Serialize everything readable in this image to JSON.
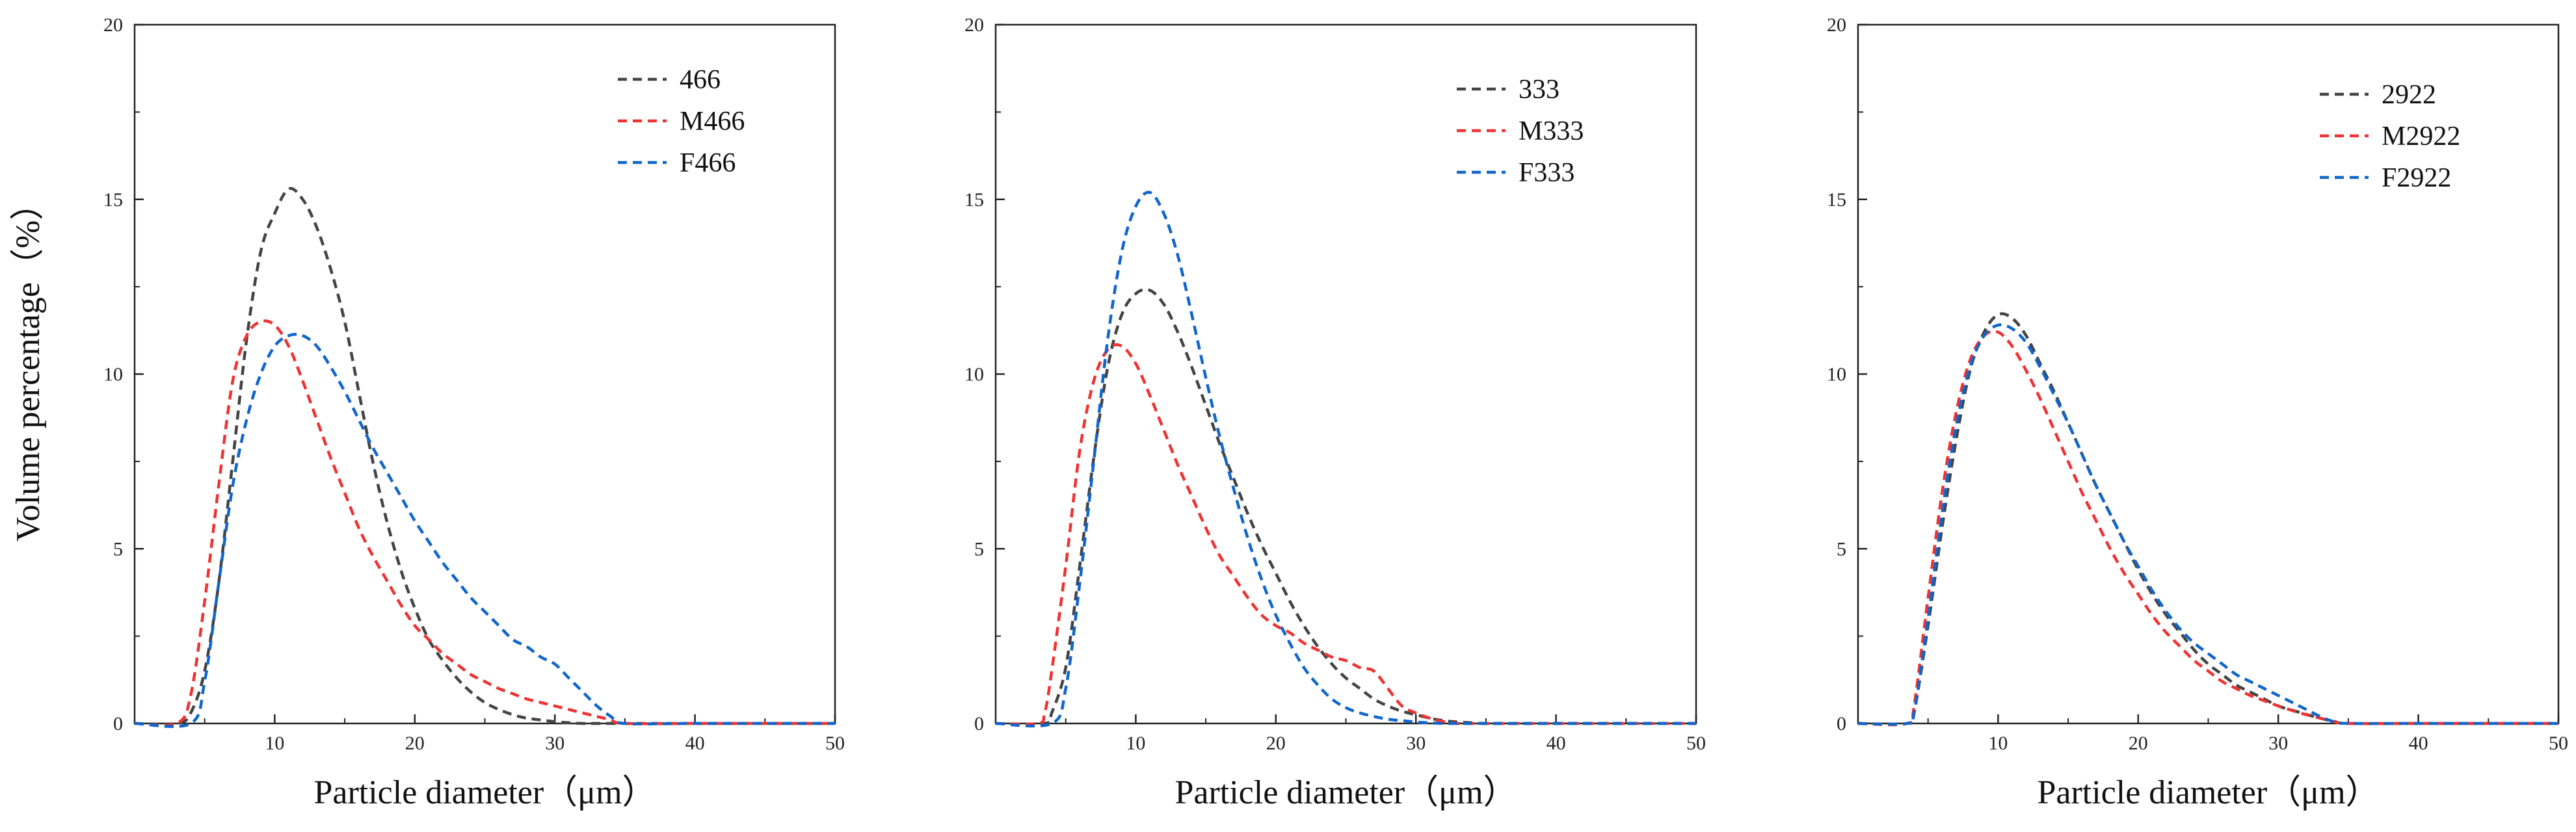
{
  "chart_data": [
    {
      "type": "line",
      "title": "",
      "xlabel": "Particle diameter（μm）",
      "ylabel": "Volume percentage（%）",
      "xlim": [
        0,
        50
      ],
      "ylim": [
        0,
        20
      ],
      "xticks": [
        10,
        20,
        30,
        40,
        50
      ],
      "yticks": [
        0,
        5,
        10,
        15,
        20
      ],
      "grid": false,
      "legend_position": "top-right",
      "series": [
        {
          "name": "466",
          "color": "#444444",
          "x": [
            0,
            3,
            4,
            5,
            6,
            7,
            8,
            9,
            10,
            11,
            12,
            13,
            14,
            15,
            16,
            17,
            18,
            19,
            20,
            21,
            22,
            23,
            24,
            25,
            26,
            27,
            28,
            29,
            30,
            31,
            32,
            33,
            35,
            40,
            45,
            50
          ],
          "y": [
            0,
            0,
            0.3,
            1.5,
            4,
            7.5,
            11,
            13.5,
            14.6,
            15.3,
            15,
            14.2,
            13,
            11.5,
            9.5,
            7.5,
            5.8,
            4.4,
            3.3,
            2.4,
            1.8,
            1.3,
            0.9,
            0.6,
            0.4,
            0.25,
            0.15,
            0.1,
            0.05,
            0.02,
            0,
            0,
            0,
            0,
            0,
            0
          ]
        },
        {
          "name": "M466",
          "color": "#ee3333",
          "x": [
            0,
            3,
            4,
            5,
            6,
            7,
            8,
            9,
            10,
            11,
            12,
            13,
            14,
            15,
            16,
            17,
            18,
            19,
            20,
            21,
            22,
            23,
            24,
            25,
            26,
            27,
            28,
            29,
            30,
            31,
            32,
            33,
            34,
            35,
            40,
            45,
            50
          ],
          "y": [
            0,
            0,
            0.8,
            3.5,
            6.8,
            9.8,
            11.1,
            11.5,
            11.4,
            10.8,
            9.8,
            8.7,
            7.6,
            6.6,
            5.6,
            4.8,
            4.1,
            3.4,
            2.8,
            2.4,
            2,
            1.7,
            1.4,
            1.2,
            1,
            0.85,
            0.7,
            0.6,
            0.5,
            0.4,
            0.3,
            0.2,
            0.1,
            0,
            0,
            0,
            0
          ]
        },
        {
          "name": "F466",
          "color": "#1166cc",
          "x": [
            0,
            4,
            5,
            6,
            7,
            8,
            9,
            10,
            11,
            12,
            13,
            14,
            15,
            16,
            17,
            18,
            19,
            20,
            21,
            22,
            23,
            24,
            25,
            26,
            27,
            28,
            29,
            30,
            31,
            32,
            33,
            34,
            35,
            40,
            45,
            50
          ],
          "y": [
            0,
            0,
            1.2,
            4,
            6.8,
            8.7,
            10,
            10.8,
            11.1,
            11.1,
            10.8,
            10.2,
            9.5,
            8.7,
            7.9,
            7.2,
            6.5,
            5.8,
            5.2,
            4.6,
            4.1,
            3.6,
            3.2,
            2.8,
            2.4,
            2.2,
            1.9,
            1.7,
            1.3,
            0.9,
            0.5,
            0.2,
            0,
            0,
            0,
            0
          ]
        }
      ]
    },
    {
      "type": "line",
      "title": "",
      "xlabel": "Particle diameter（μm）",
      "ylabel": "",
      "xlim": [
        0,
        50
      ],
      "ylim": [
        0,
        20
      ],
      "xticks": [
        10,
        20,
        30,
        40,
        50
      ],
      "yticks": [
        0,
        5,
        10,
        15,
        20
      ],
      "grid": false,
      "legend_position": "top-right",
      "series": [
        {
          "name": "333",
          "color": "#444444",
          "x": [
            0,
            3.5,
            4,
            5,
            6,
            7,
            8,
            9,
            10,
            11,
            12,
            13,
            14,
            15,
            16,
            17,
            18,
            19,
            20,
            21,
            22,
            23,
            24,
            25,
            26,
            27,
            28,
            29,
            30,
            31,
            32,
            33,
            34,
            35,
            40,
            45,
            50
          ],
          "y": [
            0,
            0,
            0.3,
            1.6,
            4.5,
            7.6,
            10.2,
            11.7,
            12.3,
            12.4,
            12,
            11.2,
            10.2,
            9.1,
            8,
            7,
            6,
            5.1,
            4.3,
            3.5,
            2.8,
            2.2,
            1.7,
            1.3,
            1,
            0.7,
            0.5,
            0.35,
            0.25,
            0.15,
            0.08,
            0.04,
            0.02,
            0,
            0,
            0,
            0
          ]
        },
        {
          "name": "M333",
          "color": "#ee3333",
          "x": [
            0,
            3,
            3.5,
            4,
            5,
            6,
            7,
            8,
            9,
            10,
            11,
            12,
            13,
            14,
            15,
            16,
            17,
            18,
            19,
            20,
            21,
            22,
            23,
            24,
            25,
            26,
            27,
            28,
            29,
            30,
            31,
            32,
            33,
            35,
            40,
            45,
            50
          ],
          "y": [
            0,
            0,
            0.3,
            1.5,
            4.5,
            7.8,
            9.8,
            10.7,
            10.8,
            10.3,
            9.4,
            8.4,
            7.4,
            6.5,
            5.6,
            4.8,
            4.2,
            3.6,
            3.1,
            2.8,
            2.6,
            2.3,
            2.1,
            1.9,
            1.8,
            1.6,
            1.5,
            1,
            0.5,
            0.3,
            0.15,
            0.05,
            0,
            0,
            0,
            0,
            0
          ]
        },
        {
          "name": "F333",
          "color": "#1166cc",
          "x": [
            0,
            4,
            5,
            6,
            7,
            8,
            9,
            10,
            11,
            12,
            13,
            14,
            15,
            16,
            17,
            18,
            19,
            20,
            21,
            22,
            23,
            24,
            25,
            26,
            27,
            28,
            29,
            30,
            31,
            32,
            35,
            40,
            45,
            50
          ],
          "y": [
            0,
            0,
            1,
            4,
            7.5,
            11,
            13.5,
            14.8,
            15.2,
            14.6,
            13.4,
            11.7,
            9.9,
            8.2,
            6.7,
            5.3,
            4.1,
            3.1,
            2.3,
            1.6,
            1.1,
            0.7,
            0.45,
            0.3,
            0.2,
            0.12,
            0.08,
            0.04,
            0.02,
            0,
            0,
            0,
            0,
            0
          ]
        }
      ]
    },
    {
      "type": "line",
      "title": "",
      "xlabel": "Particle diameter（μm）",
      "ylabel": "",
      "xlim": [
        0,
        50
      ],
      "ylim": [
        0,
        20
      ],
      "xticks": [
        10,
        20,
        30,
        40,
        50
      ],
      "yticks": [
        0,
        5,
        10,
        15,
        20
      ],
      "grid": false,
      "legend_position": "top-right",
      "series": [
        {
          "name": "2922",
          "color": "#444444",
          "x": [
            0,
            3.5,
            4,
            5,
            6,
            7,
            8,
            9,
            10,
            11,
            12,
            13,
            14,
            15,
            16,
            17,
            18,
            19,
            20,
            21,
            22,
            23,
            24,
            25,
            26,
            27,
            28,
            29,
            30,
            31,
            32,
            33,
            34,
            35,
            40,
            45,
            50
          ],
          "y": [
            0,
            0,
            0.3,
            2.8,
            5.6,
            8.1,
            10.1,
            11.2,
            11.7,
            11.6,
            11.1,
            10.3,
            9.5,
            8.6,
            7.7,
            6.8,
            6,
            5.2,
            4.4,
            3.7,
            3.1,
            2.6,
            2.1,
            1.7,
            1.4,
            1.1,
            0.9,
            0.7,
            0.5,
            0.38,
            0.26,
            0.15,
            0.06,
            0,
            0,
            0,
            0
          ]
        },
        {
          "name": "M2922",
          "color": "#ee3333",
          "x": [
            0,
            3.5,
            4,
            5,
            6,
            7,
            8,
            9,
            10,
            11,
            12,
            13,
            14,
            15,
            16,
            17,
            18,
            19,
            20,
            21,
            22,
            23,
            24,
            25,
            26,
            27,
            28,
            29,
            30,
            31,
            32,
            33,
            34,
            35,
            40,
            45,
            50
          ],
          "y": [
            0,
            0,
            0.5,
            3.6,
            6.6,
            8.9,
            10.4,
            11.1,
            11.2,
            10.8,
            10.1,
            9.3,
            8.4,
            7.5,
            6.6,
            5.8,
            5,
            4.3,
            3.7,
            3.1,
            2.6,
            2.2,
            1.8,
            1.5,
            1.2,
            1,
            0.8,
            0.65,
            0.5,
            0.37,
            0.25,
            0.15,
            0.05,
            0,
            0,
            0,
            0
          ]
        },
        {
          "name": "F2922",
          "color": "#1166cc",
          "x": [
            0,
            3.5,
            4,
            5,
            6,
            7,
            8,
            9,
            10,
            11,
            12,
            13,
            14,
            15,
            16,
            17,
            18,
            19,
            20,
            21,
            22,
            23,
            24,
            25,
            26,
            27,
            28,
            29,
            30,
            31,
            32,
            33,
            34,
            35,
            40,
            45,
            50
          ],
          "y": [
            0,
            0,
            0.3,
            3,
            6,
            8.5,
            10.2,
            11.1,
            11.4,
            11.3,
            10.9,
            10.2,
            9.4,
            8.6,
            7.7,
            6.8,
            6,
            5.2,
            4.5,
            3.8,
            3.2,
            2.7,
            2.3,
            2,
            1.7,
            1.4,
            1.2,
            1,
            0.8,
            0.6,
            0.4,
            0.2,
            0.05,
            0,
            0,
            0,
            0
          ]
        }
      ]
    }
  ]
}
